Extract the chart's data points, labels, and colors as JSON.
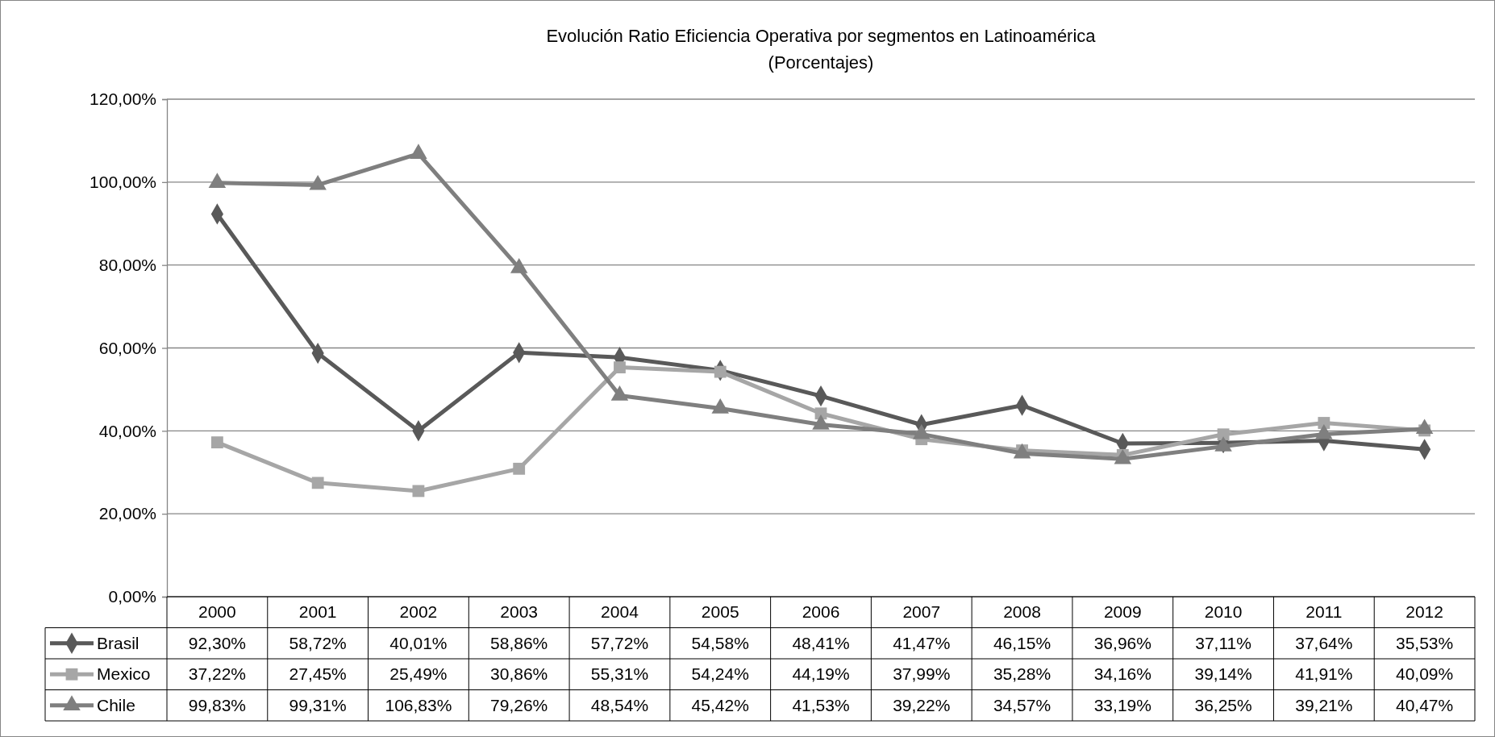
{
  "chart_data": {
    "type": "line",
    "title": "Evolución Ratio Eficiencia Operativa por segmentos en Latinoamérica",
    "subtitle": "(Porcentajes)",
    "categories": [
      "2000",
      "2001",
      "2002",
      "2003",
      "2004",
      "2005",
      "2006",
      "2007",
      "2008",
      "2009",
      "2010",
      "2011",
      "2012"
    ],
    "ylim": [
      0,
      120
    ],
    "yticks": [
      {
        "value": 0,
        "label": "0,00%"
      },
      {
        "value": 20,
        "label": "20,00%"
      },
      {
        "value": 40,
        "label": "40,00%"
      },
      {
        "value": 60,
        "label": "60,00%"
      },
      {
        "value": 80,
        "label": "80,00%"
      },
      {
        "value": 100,
        "label": "100,00%"
      },
      {
        "value": 120,
        "label": "120,00%"
      }
    ],
    "grid": "y",
    "legend": "bottom",
    "series": [
      {
        "name": "Brasil",
        "color": "#595959",
        "marker": "diamond",
        "values": [
          92.3,
          58.72,
          40.01,
          58.86,
          57.72,
          54.58,
          48.41,
          41.47,
          46.15,
          36.96,
          37.11,
          37.64,
          35.53
        ],
        "value_labels": [
          "92,30%",
          "58,72%",
          "40,01%",
          "58,86%",
          "57,72%",
          "54,58%",
          "48,41%",
          "41,47%",
          "46,15%",
          "36,96%",
          "37,11%",
          "37,64%",
          "35,53%"
        ]
      },
      {
        "name": "Mexico",
        "color": "#a6a6a6",
        "marker": "square",
        "values": [
          37.22,
          27.45,
          25.49,
          30.86,
          55.31,
          54.24,
          44.19,
          37.99,
          35.28,
          34.16,
          39.14,
          41.91,
          40.09
        ],
        "value_labels": [
          "37,22%",
          "27,45%",
          "25,49%",
          "30,86%",
          "55,31%",
          "54,24%",
          "44,19%",
          "37,99%",
          "35,28%",
          "34,16%",
          "39,14%",
          "41,91%",
          "40,09%"
        ]
      },
      {
        "name": "Chile",
        "color": "#7f7f7f",
        "marker": "triangle",
        "values": [
          99.83,
          99.31,
          106.83,
          79.26,
          48.54,
          45.42,
          41.53,
          39.22,
          34.57,
          33.19,
          36.25,
          39.21,
          40.47
        ],
        "value_labels": [
          "99,83%",
          "99,31%",
          "106,83%",
          "79,26%",
          "48,54%",
          "45,42%",
          "41,53%",
          "39,22%",
          "34,57%",
          "33,19%",
          "36,25%",
          "39,21%",
          "40,47%"
        ]
      }
    ]
  }
}
